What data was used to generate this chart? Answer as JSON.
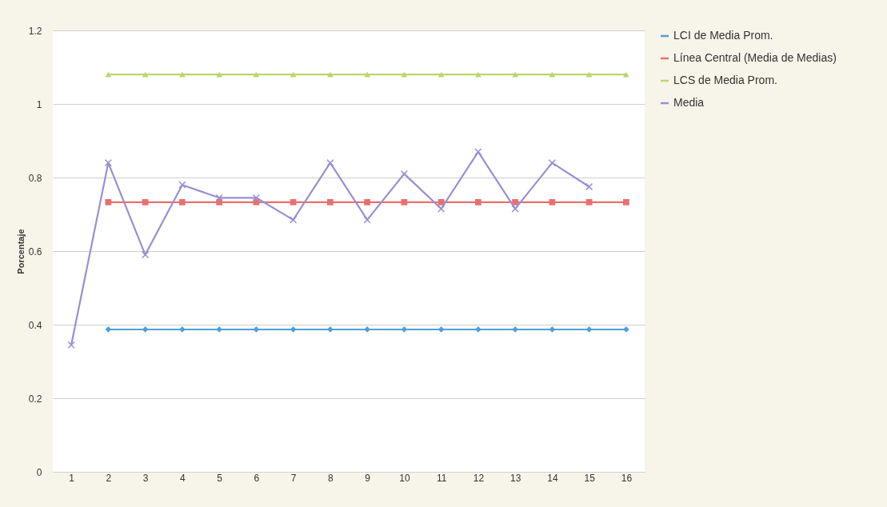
{
  "chart_data": {
    "type": "line",
    "ylabel": "Porcentaje",
    "categories": [
      "1",
      "2",
      "3",
      "4",
      "5",
      "6",
      "7",
      "8",
      "9",
      "10",
      "11",
      "12",
      "13",
      "14",
      "15",
      "16"
    ],
    "series": [
      {
        "name": "LCI de Media Prom.",
        "color": "#4f9fdc",
        "marker": "diamond",
        "values": [
          null,
          0.387,
          0.387,
          0.387,
          0.387,
          0.387,
          0.387,
          0.387,
          0.387,
          0.387,
          0.387,
          0.387,
          0.387,
          0.387,
          0.387,
          0.387
        ]
      },
      {
        "name": "Línea Central (Media de Medias)",
        "color": "#e8706e",
        "marker": "square",
        "values": [
          null,
          0.733,
          0.733,
          0.733,
          0.733,
          0.733,
          0.733,
          0.733,
          0.733,
          0.733,
          0.733,
          0.733,
          0.733,
          0.733,
          0.733,
          0.733
        ]
      },
      {
        "name": "LCS de Media Prom.",
        "color": "#b9d86a",
        "marker": "triangle",
        "values": [
          null,
          1.08,
          1.08,
          1.08,
          1.08,
          1.08,
          1.08,
          1.08,
          1.08,
          1.08,
          1.08,
          1.08,
          1.08,
          1.08,
          1.08,
          1.08
        ]
      },
      {
        "name": "Media",
        "color": "#9a8fd3",
        "marker": "cross",
        "values": [
          0.345,
          0.84,
          0.59,
          0.78,
          0.745,
          0.745,
          0.685,
          0.84,
          0.685,
          0.81,
          0.715,
          0.87,
          0.715,
          0.84,
          0.775,
          null
        ]
      }
    ],
    "ylim": [
      0,
      1.2
    ],
    "yticks": [
      0,
      0.2,
      0.4,
      0.6,
      0.8,
      1,
      1.2
    ],
    "grid": "y",
    "legend": "right",
    "line_style": "solid"
  }
}
